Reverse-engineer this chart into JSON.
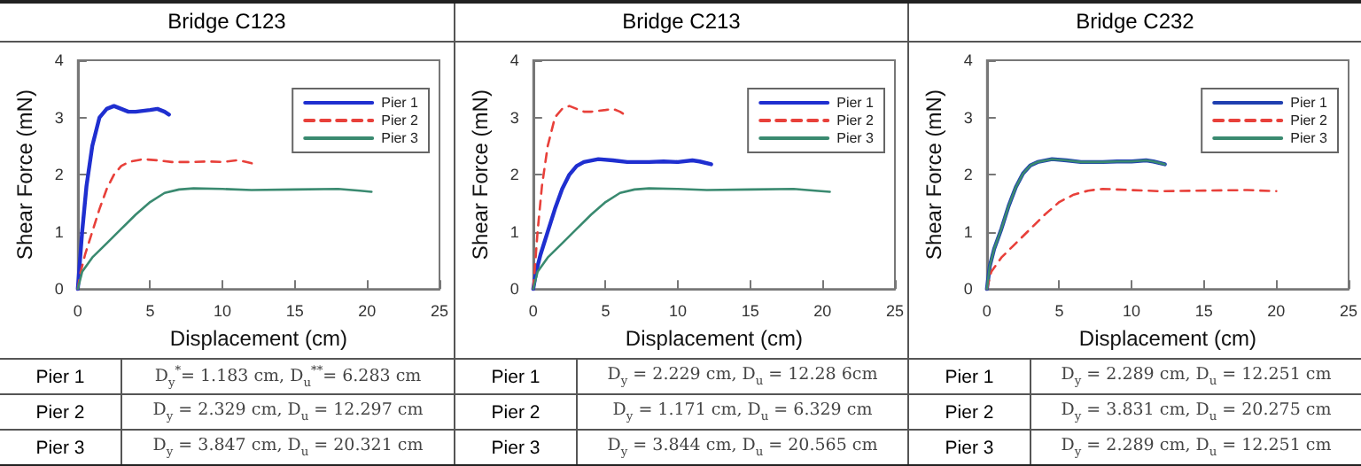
{
  "chart_data": [
    {
      "type": "line",
      "title": "Bridge  C123",
      "xlabel": "Displacement (cm)",
      "ylabel": "Shear Force (mN)",
      "xlim": [
        0,
        25
      ],
      "xticks": [
        0,
        5,
        10,
        15,
        20,
        25
      ],
      "ylim": [
        0,
        4
      ],
      "yticks": [
        0,
        1,
        2,
        3,
        4
      ],
      "grid": false,
      "legend": "top right",
      "marker": "none",
      "series": [
        {
          "name": "Pier 1",
          "color": "#1f2fd0",
          "line_style": "solid",
          "x": [
            0,
            0.3,
            0.6,
            1,
            1.5,
            2,
            2.5,
            3,
            3.5,
            4,
            5,
            5.5,
            6,
            6.3
          ],
          "values": [
            0,
            1,
            1.8,
            2.5,
            3,
            3.15,
            3.2,
            3.15,
            3.1,
            3.1,
            3.13,
            3.15,
            3.1,
            3.05
          ]
        },
        {
          "name": "Pier 2",
          "color": "#e8403a",
          "line_style": "dashed",
          "x": [
            0,
            0.2,
            0.5,
            1,
            1.5,
            2,
            2.5,
            3,
            3.5,
            4.5,
            5.5,
            6.5,
            8,
            9,
            10,
            11,
            11.5,
            12.3
          ],
          "values": [
            0,
            0.3,
            0.6,
            1,
            1.4,
            1.75,
            2,
            2.15,
            2.22,
            2.27,
            2.25,
            2.22,
            2.22,
            2.23,
            2.22,
            2.25,
            2.23,
            2.18
          ]
        },
        {
          "name": "Pier 3",
          "color": "#3a8a70",
          "line_style": "solid",
          "x": [
            0,
            0.3,
            1,
            2,
            3,
            4,
            5,
            6,
            7,
            8,
            10,
            12,
            15,
            18,
            19.5,
            20.3
          ],
          "values": [
            0,
            0.3,
            0.55,
            0.8,
            1.05,
            1.3,
            1.52,
            1.68,
            1.74,
            1.76,
            1.75,
            1.73,
            1.74,
            1.75,
            1.72,
            1.7
          ]
        }
      ],
      "annotations": [
        "Pier 1",
        "D$_{y}$$^{*}$= 1.183 cm, D$_{u}$$^{**}$= 6.283 cm",
        "Pier 2",
        "D$_{y}$ = 2.329 cm, D$_{u}$ = 12.297 cm",
        "Pier 3",
        "D$_{y}$ = 3.847 cm, D$_{u}$ = 20.321 cm"
      ]
    },
    {
      "type": "line",
      "title": "Bridge  C213",
      "xlabel": "Displacement (cm)",
      "ylabel": "Shear Force (mN)",
      "xlim": [
        0,
        25
      ],
      "xticks": [
        0,
        5,
        10,
        15,
        20,
        25
      ],
      "ylim": [
        0,
        4
      ],
      "yticks": [
        0,
        1,
        2,
        3,
        4
      ],
      "grid": false,
      "legend": "top right",
      "marker": "none",
      "series": [
        {
          "name": "Pier 1",
          "color": "#1f2fd0",
          "line_style": "solid",
          "x": [
            0,
            0.2,
            0.5,
            1,
            1.5,
            2,
            2.5,
            3,
            3.5,
            4.5,
            5.5,
            6.5,
            8,
            9,
            10,
            11,
            11.5,
            12.3
          ],
          "values": [
            0,
            0.3,
            0.6,
            1,
            1.4,
            1.75,
            2,
            2.15,
            2.22,
            2.27,
            2.25,
            2.22,
            2.22,
            2.23,
            2.22,
            2.25,
            2.23,
            2.18
          ]
        },
        {
          "name": "Pier 2",
          "color": "#e8403a",
          "line_style": "dashed",
          "x": [
            0,
            0.3,
            0.6,
            1,
            1.5,
            2,
            2.5,
            3,
            3.5,
            4,
            5,
            5.5,
            6,
            6.3
          ],
          "values": [
            0,
            1,
            1.8,
            2.5,
            3,
            3.15,
            3.2,
            3.15,
            3.1,
            3.1,
            3.13,
            3.15,
            3.1,
            3.05
          ]
        },
        {
          "name": "Pier 3",
          "color": "#3a8a70",
          "line_style": "solid",
          "x": [
            0,
            0.3,
            1,
            2,
            3,
            4,
            5,
            6,
            7,
            8,
            10,
            12,
            15,
            18,
            19.5,
            20.5
          ],
          "values": [
            0,
            0.3,
            0.55,
            0.8,
            1.05,
            1.3,
            1.52,
            1.68,
            1.74,
            1.76,
            1.75,
            1.73,
            1.74,
            1.75,
            1.72,
            1.7
          ]
        }
      ],
      "annotations": [
        "Pier 1",
        "D$_{y}$ = 2.229 cm, D$_{u}$ = 12.28 6cm",
        "Pier 2",
        "D$_{y}$ = 1.171 cm, D$_{u}$ = 6.329 cm",
        "Pier 3",
        "D$_{y}$ = 3.844 cm, D$_{u}$ = 20.565 cm"
      ]
    },
    {
      "type": "line",
      "title": "Bridge  C232",
      "xlabel": "Displacement (cm)",
      "ylabel": "Shear Force (mN)",
      "xlim": [
        0,
        25
      ],
      "xticks": [
        0,
        5,
        10,
        15,
        20,
        25
      ],
      "ylim": [
        0,
        4
      ],
      "yticks": [
        0,
        1,
        2,
        3,
        4
      ],
      "grid": false,
      "legend": "top right",
      "marker": "none",
      "series": [
        {
          "name": "Pier 1",
          "color": "#1f3fb0",
          "line_style": "solid",
          "x": [
            0,
            0.2,
            0.5,
            1,
            1.5,
            2,
            2.5,
            3,
            3.5,
            4.5,
            5.5,
            6.5,
            8,
            9,
            10,
            11,
            11.5,
            12.3
          ],
          "values": [
            0,
            0.4,
            0.7,
            1.05,
            1.45,
            1.78,
            2.02,
            2.16,
            2.22,
            2.27,
            2.25,
            2.22,
            2.22,
            2.23,
            2.23,
            2.25,
            2.23,
            2.18
          ]
        },
        {
          "name": "Pier 2",
          "color": "#e8403a",
          "line_style": "dashed",
          "x": [
            0,
            0.3,
            1,
            2,
            3,
            4,
            5,
            6,
            7,
            8,
            10,
            12,
            15,
            18,
            20
          ],
          "values": [
            0,
            0.3,
            0.55,
            0.8,
            1.05,
            1.3,
            1.52,
            1.65,
            1.72,
            1.75,
            1.73,
            1.71,
            1.72,
            1.73,
            1.71
          ]
        },
        {
          "name": "Pier 3",
          "color": "#3a8a70",
          "line_style": "solid",
          "x": [
            0,
            0.2,
            0.5,
            1,
            1.5,
            2,
            2.5,
            3,
            3.5,
            4.5,
            5.5,
            6.5,
            8,
            9,
            10,
            11,
            11.5,
            12.3
          ],
          "values": [
            0,
            0.4,
            0.7,
            1.05,
            1.45,
            1.78,
            2.02,
            2.16,
            2.22,
            2.27,
            2.25,
            2.22,
            2.22,
            2.23,
            2.23,
            2.25,
            2.23,
            2.18
          ]
        }
      ],
      "annotations": [
        "Pier 1",
        "D$_{y}$ = 2.289 cm, D$_{u}$ = 12.251 cm",
        "Pier 2",
        "D$_{y}$ = 3.831 cm, D$_{u}$ = 20.275 cm",
        "Pier 3",
        "D$_{y}$ = 2.289 cm, D$_{u}$ = 12.251 cm"
      ]
    }
  ]
}
